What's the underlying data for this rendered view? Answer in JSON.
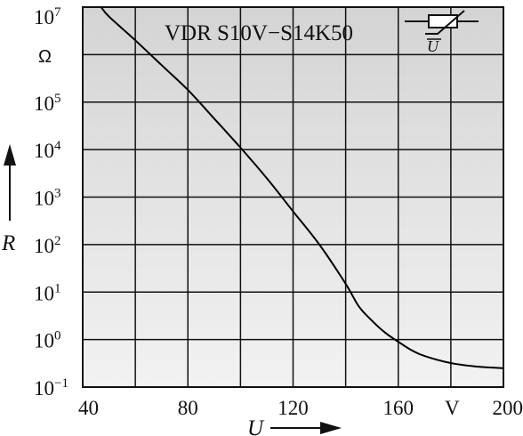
{
  "chart_data": {
    "type": "line",
    "title": "VDR S10V−S14K50",
    "xlabel": "U",
    "x_unit": "V",
    "ylabel": "R",
    "y_unit": "Ω",
    "xlim": [
      40,
      200
    ],
    "ylim": [
      0.1,
      10000000
    ],
    "y_scale": "log",
    "grid": true,
    "x_ticks": [
      "40",
      "80",
      "120",
      "160",
      "200"
    ],
    "y_ticks": [
      {
        "base": "10",
        "exp": "−1",
        "value": 0.1
      },
      {
        "base": "10",
        "exp": "0",
        "value": 1
      },
      {
        "base": "10",
        "exp": "1",
        "value": 10
      },
      {
        "base": "10",
        "exp": "2",
        "value": 100
      },
      {
        "base": "10",
        "exp": "3",
        "value": 1000
      },
      {
        "base": "10",
        "exp": "4",
        "value": 10000
      },
      {
        "base": "10",
        "exp": "5",
        "value": 100000
      },
      {
        "base": "10",
        "exp": "7",
        "value": 10000000
      }
    ],
    "series": [
      {
        "x": [
          47,
          50,
          60,
          70,
          80,
          90,
          100,
          110,
          120,
          130,
          140,
          145,
          150,
          155,
          160,
          165,
          170,
          180,
          190,
          200
        ],
        "y": [
          10000000,
          6300000,
          2000000,
          600000,
          180000,
          45000,
          11000,
          2500,
          500,
          100,
          15,
          5,
          2.5,
          1.4,
          0.9,
          0.6,
          0.45,
          0.32,
          0.27,
          0.25
        ]
      }
    ]
  },
  "symbol_label": "U"
}
